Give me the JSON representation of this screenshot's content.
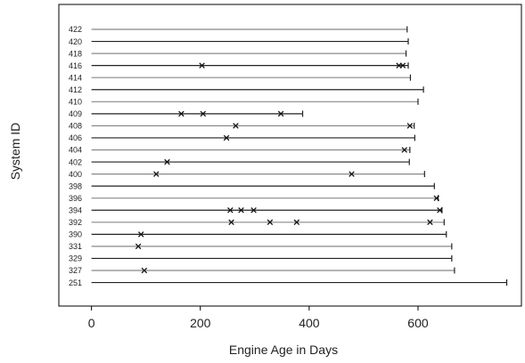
{
  "chart_data": {
    "type": "event-chart",
    "title": "",
    "xlabel": "Engine Age in Days",
    "ylabel": "System ID",
    "xlim": [
      -60,
      790
    ],
    "xticks": [
      0,
      200,
      400,
      600
    ],
    "grid": false,
    "systems": [
      {
        "id": "422",
        "end": 580,
        "events": []
      },
      {
        "id": "420",
        "end": 582,
        "events": []
      },
      {
        "id": "418",
        "end": 578,
        "events": []
      },
      {
        "id": "416",
        "end": 582,
        "events": [
          203,
          565,
          572
        ]
      },
      {
        "id": "414",
        "end": 586,
        "events": []
      },
      {
        "id": "412",
        "end": 610,
        "events": []
      },
      {
        "id": "410",
        "end": 600,
        "events": []
      },
      {
        "id": "409",
        "end": 388,
        "events": [
          165,
          205,
          348
        ]
      },
      {
        "id": "408",
        "end": 593,
        "events": [
          265,
          585
        ]
      },
      {
        "id": "406",
        "end": 594,
        "events": [
          248
        ]
      },
      {
        "id": "404",
        "end": 585,
        "events": [
          575
        ]
      },
      {
        "id": "402",
        "end": 584,
        "events": [
          139
        ]
      },
      {
        "id": "400",
        "end": 612,
        "events": [
          119,
          478
        ]
      },
      {
        "id": "398",
        "end": 630,
        "events": []
      },
      {
        "id": "396",
        "end": 637,
        "events": [
          634
        ]
      },
      {
        "id": "394",
        "end": 644,
        "events": [
          255,
          275,
          298,
          640
        ]
      },
      {
        "id": "392",
        "end": 648,
        "events": [
          257,
          328,
          377,
          622
        ]
      },
      {
        "id": "390",
        "end": 652,
        "events": [
          91
        ]
      },
      {
        "id": "331",
        "end": 662,
        "events": [
          86
        ]
      },
      {
        "id": "329",
        "end": 662,
        "events": []
      },
      {
        "id": "327",
        "end": 667,
        "events": [
          97
        ]
      },
      {
        "id": "251",
        "end": 763,
        "events": []
      }
    ]
  }
}
